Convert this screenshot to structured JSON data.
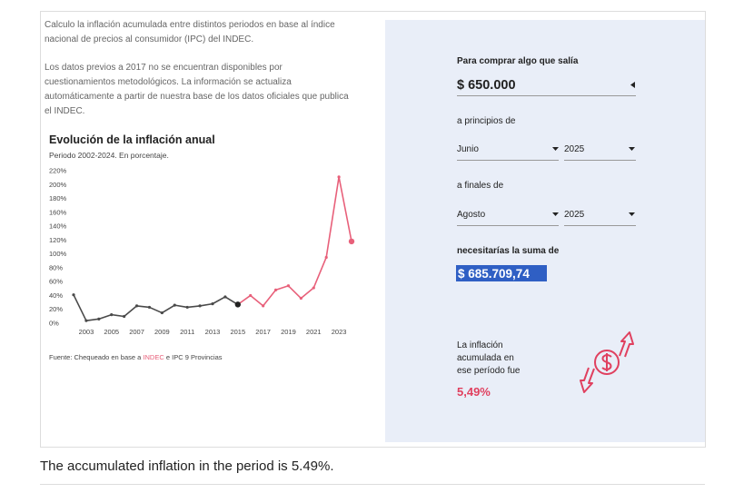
{
  "intro": [
    "Calculo la inflación acumulada entre distintos periodos en base al índice",
    "nacional de precios al consumidor (IPC) del INDEC."
  ],
  "note": [
    "Los datos previos a 2017 no se encuentran disponibles por",
    "cuestionamientos metodológicos. La información se actualiza",
    "automáticamente a partir de nuestra base de los datos oficiales que publica",
    "el INDEC."
  ],
  "chart_data": {
    "type": "line",
    "title": "Evolución de la inflación anual",
    "subtitle": "Periodo 2002-2024. En porcentaje.",
    "x": [
      2002,
      2003,
      2004,
      2005,
      2006,
      2007,
      2008,
      2009,
      2010,
      2011,
      2012,
      2013,
      2014,
      2015,
      2016,
      2017,
      2018,
      2019,
      2020,
      2021,
      2022,
      2023,
      2024
    ],
    "series": [
      {
        "color": "#4a4a4a",
        "values": [
          41,
          3.7,
          6.1,
          12.3,
          9.8,
          25,
          23,
          15,
          26,
          23,
          25,
          28,
          38,
          27,
          null,
          null,
          null,
          null,
          null,
          null,
          null,
          null,
          null
        ]
      },
      {
        "color": "#e8607a",
        "values": [
          null,
          null,
          null,
          null,
          null,
          null,
          null,
          null,
          null,
          null,
          null,
          null,
          null,
          27,
          40,
          25,
          48,
          54,
          36,
          51,
          95,
          211,
          118
        ]
      }
    ],
    "xlim": [
      2002,
      2024
    ],
    "xticks": [
      2003,
      2005,
      2007,
      2009,
      2011,
      2013,
      2015,
      2017,
      2019,
      2021,
      2023
    ],
    "ylim": [
      0,
      220
    ],
    "yticks": [
      {
        "value": 0,
        "label": "0%"
      },
      {
        "value": 20,
        "label": "20%"
      },
      {
        "value": 40,
        "label": "40%"
      },
      {
        "value": 60,
        "label": "60%"
      },
      {
        "value": 80,
        "label": "80%"
      },
      {
        "value": 100,
        "label": "100%"
      },
      {
        "value": 120,
        "label": "120%"
      },
      {
        "value": 140,
        "label": "140%"
      },
      {
        "value": 160,
        "label": "160%"
      },
      {
        "value": 180,
        "label": "180%"
      },
      {
        "value": 200,
        "label": "200%"
      },
      {
        "value": 220,
        "label": "220%"
      }
    ],
    "grid": false,
    "source": [
      "Fuente: Chequeado en base a ",
      "INDEC",
      " e IPC 9 Provincias"
    ]
  },
  "calculator": {
    "label_price": "Para comprar algo que salía",
    "price": "$ 650.000",
    "label_start": "a principios de",
    "start_month": "Junio",
    "start_year": "2025",
    "label_end": "a finales de",
    "end_month": "Agosto",
    "end_year": "2025",
    "label_result": "necesitarías la suma de",
    "result": "$ 685.709,74",
    "inflation_label": [
      "La inflación",
      "acumulada en",
      "ese período fue"
    ],
    "inflation": "5,49%"
  },
  "caption": "The accumulated inflation in the period is 5.49%."
}
